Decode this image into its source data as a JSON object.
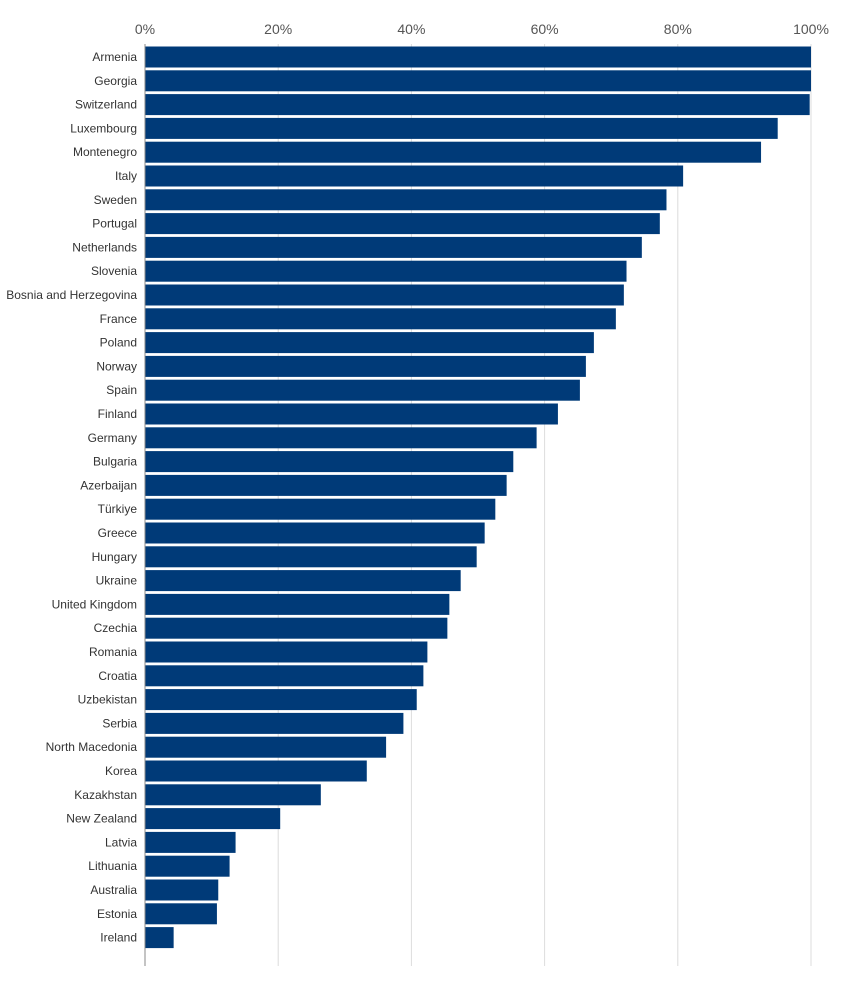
{
  "chart_data": {
    "type": "bar",
    "orientation": "horizontal",
    "categories": [
      "Armenia",
      "Georgia",
      "Switzerland",
      "Luxembourg",
      "Montenegro",
      "Italy",
      "Sweden",
      "Portugal",
      "Netherlands",
      "Slovenia",
      "Bosnia and Herzegovina",
      "France",
      "Poland",
      "Norway",
      "Spain",
      "Finland",
      "Germany",
      "Bulgaria",
      "Azerbaijan",
      "Türkiye",
      "Greece",
      "Hungary",
      "Ukraine",
      "United Kingdom",
      "Czechia",
      "Romania",
      "Croatia",
      "Uzbekistan",
      "Serbia",
      "North Macedonia",
      "Korea",
      "Kazakhstan",
      "New Zealand",
      "Latvia",
      "Lithuania",
      "Australia",
      "Estonia",
      "Ireland"
    ],
    "values": [
      100,
      100,
      99.8,
      95,
      92.5,
      80.8,
      78.3,
      77.3,
      74.6,
      72.3,
      71.9,
      70.7,
      67.4,
      66.2,
      65.3,
      62.0,
      58.8,
      55.3,
      54.3,
      52.6,
      51.0,
      49.8,
      47.4,
      45.7,
      45.4,
      42.4,
      41.8,
      40.8,
      38.8,
      36.2,
      33.3,
      26.4,
      20.3,
      13.6,
      12.7,
      11.0,
      10.8,
      4.3
    ],
    "xlim": [
      0,
      100
    ],
    "xticks": [
      "0%",
      "20%",
      "40%",
      "60%",
      "80%",
      "100%"
    ],
    "xtick_values": [
      0,
      20,
      40,
      60,
      80,
      100
    ],
    "grid": true,
    "bar_color": "#003a78"
  }
}
